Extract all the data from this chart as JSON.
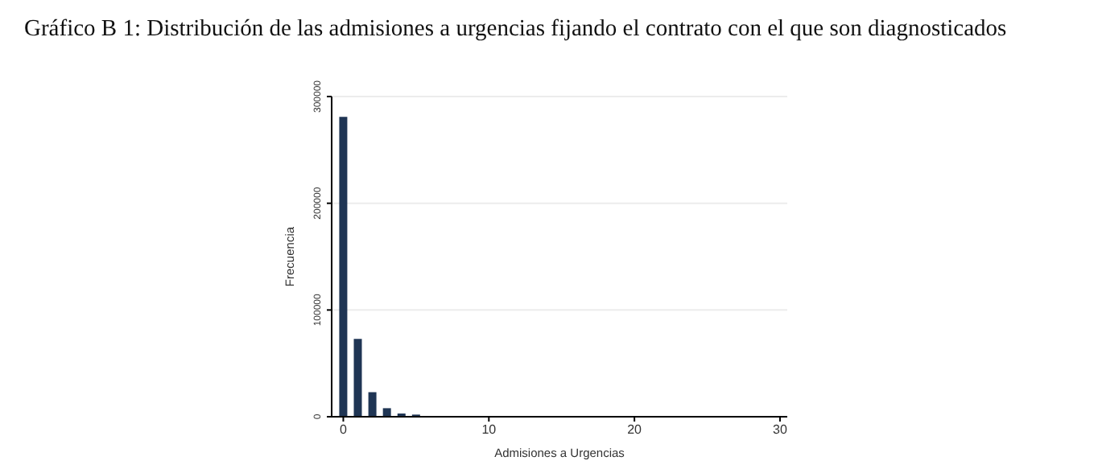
{
  "chart_data": {
    "type": "bar",
    "title": "Gráfico B 1: Distribución de las admisiones a urgencias fijando el contrato con el que son diagnosticados",
    "xlabel": "Admisiones a Urgencias",
    "ylabel": "Frecuencia",
    "x": [
      0,
      1,
      2,
      3,
      4,
      5
    ],
    "values": [
      281000,
      73000,
      23000,
      8000,
      3000,
      2000
    ],
    "color": "#1f3554",
    "xlim": [
      -0.8,
      30.5
    ],
    "xticks": [
      0,
      10,
      20,
      30
    ],
    "ylim": [
      0,
      300000
    ],
    "yticks": [
      0,
      100000,
      200000,
      300000
    ],
    "grid": "y"
  }
}
